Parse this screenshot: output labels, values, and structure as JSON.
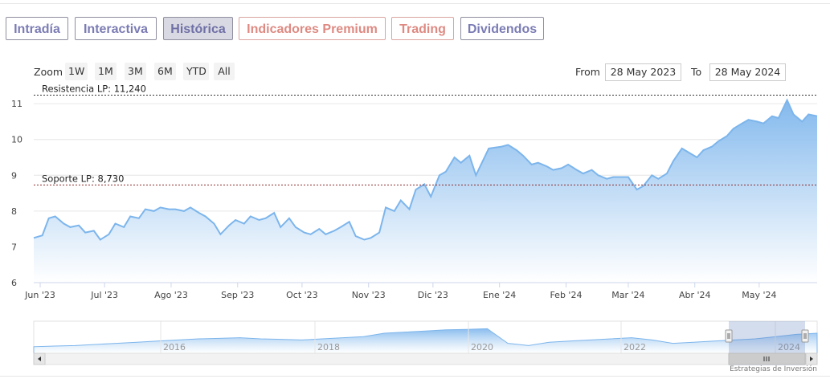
{
  "tabs": [
    {
      "label": "Intradía",
      "style": "purple"
    },
    {
      "label": "Interactiva",
      "style": "purple"
    },
    {
      "label": "Histórica",
      "style": "active"
    },
    {
      "label": "Indicadores Premium",
      "style": "red"
    },
    {
      "label": "Trading",
      "style": "red"
    },
    {
      "label": "Dividendos",
      "style": "purple"
    }
  ],
  "zoom": {
    "label": "Zoom",
    "buttons": [
      "1W",
      "1M",
      "3M",
      "6M",
      "YTD",
      "All"
    ]
  },
  "range": {
    "from_label": "From",
    "from_value": "28 May 2023",
    "to_label": "To",
    "to_value": "28 May 2024"
  },
  "credits": "Estrategias de Inversión",
  "colors": {
    "line": "#7cb5ec",
    "area_top": "#7cb5ec",
    "area_bottom": "#ffffff",
    "resistance": "#333333",
    "support": "#8b2a2a",
    "grid": "#e6e6e6"
  },
  "chart_data": {
    "type": "area",
    "ylim": [
      6,
      11.25
    ],
    "yticks": [
      "6",
      "7",
      "8",
      "9",
      "10",
      "11"
    ],
    "xticks": [
      "Jun '23",
      "Jul '23",
      "Ago '23",
      "Sep '23",
      "Oct '23",
      "Nov '23",
      "Dic '23",
      "Ene '24",
      "Feb '24",
      "Mar '24",
      "Abr '24",
      "May '24"
    ],
    "plot_lines": [
      {
        "label": "Resistencia LP: 11,240",
        "value": 11.24,
        "color": "#333333"
      },
      {
        "label": "Soporte LP: 8,730",
        "value": 8.73,
        "color": "#8b2a2a"
      }
    ],
    "series": [
      {
        "x": [
          "2023-05-29",
          "2023-06-02",
          "2023-06-05",
          "2023-06-08",
          "2023-06-12",
          "2023-06-15",
          "2023-06-19",
          "2023-06-22",
          "2023-06-26",
          "2023-06-29",
          "2023-07-03",
          "2023-07-06",
          "2023-07-10",
          "2023-07-13",
          "2023-07-17",
          "2023-07-20",
          "2023-07-24",
          "2023-07-27",
          "2023-07-31",
          "2023-08-03",
          "2023-08-07",
          "2023-08-10",
          "2023-08-14",
          "2023-08-17",
          "2023-08-21",
          "2023-08-24",
          "2023-08-28",
          "2023-08-31",
          "2023-09-04",
          "2023-09-07",
          "2023-09-11",
          "2023-09-14",
          "2023-09-18",
          "2023-09-21",
          "2023-09-25",
          "2023-09-28",
          "2023-10-02",
          "2023-10-05",
          "2023-10-09",
          "2023-10-12",
          "2023-10-16",
          "2023-10-19",
          "2023-10-23",
          "2023-10-26",
          "2023-10-30",
          "2023-11-02",
          "2023-11-06",
          "2023-11-09",
          "2023-11-13",
          "2023-11-16",
          "2023-11-20",
          "2023-11-23",
          "2023-11-27",
          "2023-11-30",
          "2023-12-04",
          "2023-12-07",
          "2023-12-11",
          "2023-12-14",
          "2023-12-18",
          "2023-12-21",
          "2023-12-27",
          "2024-01-02",
          "2024-01-05",
          "2024-01-09",
          "2024-01-12",
          "2024-01-16",
          "2024-01-19",
          "2024-01-23",
          "2024-01-26",
          "2024-01-30",
          "2024-02-02",
          "2024-02-06",
          "2024-02-09",
          "2024-02-13",
          "2024-02-16",
          "2024-02-20",
          "2024-02-23",
          "2024-02-27",
          "2024-03-01",
          "2024-03-05",
          "2024-03-08",
          "2024-03-12",
          "2024-03-15",
          "2024-03-19",
          "2024-03-22",
          "2024-03-26",
          "2024-04-02",
          "2024-04-05",
          "2024-04-09",
          "2024-04-12",
          "2024-04-16",
          "2024-04-19",
          "2024-04-23",
          "2024-04-26",
          "2024-04-30",
          "2024-05-03",
          "2024-05-07",
          "2024-05-10",
          "2024-05-14",
          "2024-05-17",
          "2024-05-21",
          "2024-05-24",
          "2024-05-28"
        ],
        "y": [
          7.25,
          7.32,
          7.8,
          7.85,
          7.65,
          7.55,
          7.6,
          7.4,
          7.45,
          7.2,
          7.35,
          7.65,
          7.55,
          7.85,
          7.8,
          8.05,
          8.0,
          8.1,
          8.05,
          8.05,
          8.0,
          8.1,
          7.95,
          7.85,
          7.65,
          7.35,
          7.6,
          7.75,
          7.65,
          7.85,
          7.75,
          7.8,
          7.95,
          7.55,
          7.8,
          7.55,
          7.4,
          7.35,
          7.5,
          7.35,
          7.45,
          7.55,
          7.7,
          7.3,
          7.2,
          7.25,
          7.4,
          8.1,
          8.0,
          8.3,
          8.05,
          8.6,
          8.75,
          8.4,
          9.0,
          9.1,
          9.5,
          9.35,
          9.55,
          9.0,
          9.75,
          9.8,
          9.85,
          9.7,
          9.55,
          9.3,
          9.35,
          9.25,
          9.15,
          9.2,
          9.3,
          9.15,
          9.05,
          9.15,
          9.0,
          8.9,
          8.95,
          8.95,
          8.95,
          8.6,
          8.7,
          9.0,
          8.9,
          9.05,
          9.4,
          9.75,
          9.5,
          9.7,
          9.8,
          9.95,
          10.1,
          10.3,
          10.45,
          10.55,
          10.5,
          10.45,
          10.65,
          10.6,
          11.1,
          10.7,
          10.5,
          10.7,
          10.65
        ]
      }
    ],
    "navigator": {
      "xticks": [
        "2016",
        "2018",
        "2020",
        "2022",
        "2024"
      ]
    }
  }
}
